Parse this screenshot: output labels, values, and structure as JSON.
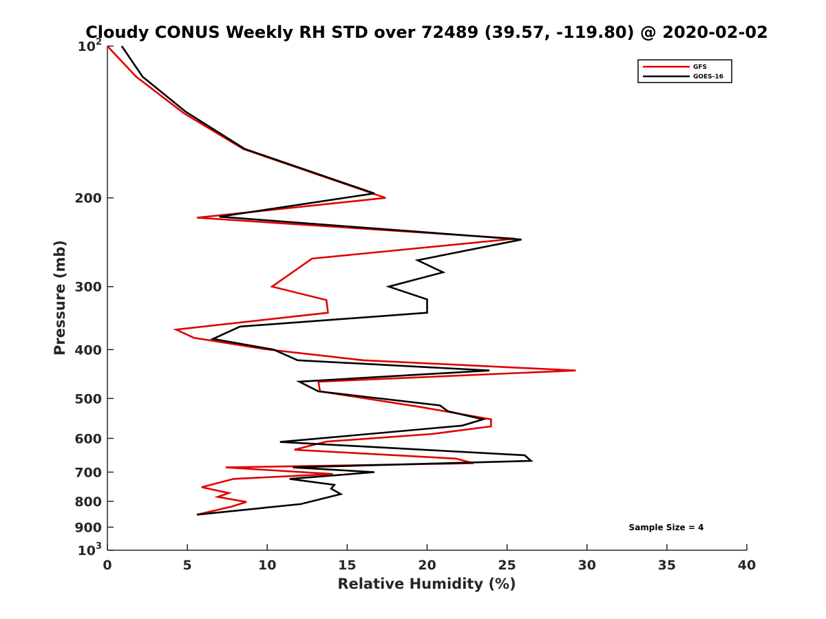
{
  "chart_data": {
    "type": "line",
    "title": "Cloudy CONUS Weekly RH STD over 72489 (39.57, -119.80) @ 2020-02-02",
    "xlabel": "Relative Humidity (%)",
    "ylabel": "Pressure (mb)",
    "xlim": [
      0,
      40
    ],
    "ylim": [
      100,
      1000
    ],
    "y_scale": "log",
    "y_reversed": true,
    "grid": false,
    "legend_position": "top-right",
    "x_ticks": [
      0,
      5,
      10,
      15,
      20,
      25,
      30,
      35,
      40
    ],
    "x_tick_labels": [
      "0",
      "5",
      "10",
      "15",
      "20",
      "25",
      "30",
      "35",
      "40"
    ],
    "y_ticks": [
      {
        "value": 100,
        "base": "10",
        "exp": "2"
      },
      {
        "value": 200,
        "label": "200"
      },
      {
        "value": 300,
        "label": "300"
      },
      {
        "value": 400,
        "label": "400"
      },
      {
        "value": 500,
        "label": "500"
      },
      {
        "value": 600,
        "label": "600"
      },
      {
        "value": 700,
        "label": "700"
      },
      {
        "value": 800,
        "label": "800"
      },
      {
        "value": 900,
        "label": "900"
      },
      {
        "value": 1000,
        "base": "10",
        "exp": "3"
      }
    ],
    "annotation": "Sample Size = 4",
    "series": [
      {
        "name": "GFS",
        "color": "#e00000",
        "points": [
          [
            0.0,
            100
          ],
          [
            1.8,
            115
          ],
          [
            4.8,
            136
          ],
          [
            8.5,
            160
          ],
          [
            17.4,
            200
          ],
          [
            5.6,
            219
          ],
          [
            25.5,
            241
          ],
          [
            12.8,
            264
          ],
          [
            10.3,
            300
          ],
          [
            13.7,
            319
          ],
          [
            13.8,
            338
          ],
          [
            4.3,
            365
          ],
          [
            5.4,
            379
          ],
          [
            9.8,
            399
          ],
          [
            16.0,
            420
          ],
          [
            29.3,
            440
          ],
          [
            13.2,
            463
          ],
          [
            13.3,
            484
          ],
          [
            19.6,
            520
          ],
          [
            24.0,
            550
          ],
          [
            24.0,
            568
          ],
          [
            20.3,
            588
          ],
          [
            13.7,
            609
          ],
          [
            11.7,
            632
          ],
          [
            21.8,
            658
          ],
          [
            22.9,
            672
          ],
          [
            7.4,
            685
          ],
          [
            14.1,
            706
          ],
          [
            7.9,
            722
          ],
          [
            5.9,
            750
          ],
          [
            7.6,
            770
          ],
          [
            6.9,
            784
          ],
          [
            8.7,
            802
          ],
          [
            7.8,
            819
          ],
          [
            5.6,
            850
          ]
        ]
      },
      {
        "name": "GOES-16",
        "color": "#000000",
        "points": [
          [
            0.9,
            100
          ],
          [
            2.2,
            115
          ],
          [
            4.9,
            135
          ],
          [
            8.6,
            160
          ],
          [
            16.7,
            196
          ],
          [
            7.0,
            218
          ],
          [
            25.9,
            242
          ],
          [
            19.4,
            266
          ],
          [
            21.0,
            281
          ],
          [
            17.6,
            300
          ],
          [
            20.0,
            318
          ],
          [
            20.0,
            338
          ],
          [
            8.3,
            360
          ],
          [
            6.6,
            381
          ],
          [
            10.4,
            400
          ],
          [
            11.9,
            420
          ],
          [
            23.9,
            440
          ],
          [
            12.0,
            463
          ],
          [
            13.2,
            484
          ],
          [
            20.8,
            516
          ],
          [
            21.3,
            530
          ],
          [
            23.5,
            550
          ],
          [
            22.2,
            566
          ],
          [
            10.8,
            610
          ],
          [
            26.1,
            648
          ],
          [
            26.5,
            665
          ],
          [
            11.6,
            685
          ],
          [
            16.7,
            700
          ],
          [
            11.4,
            722
          ],
          [
            14.2,
            742
          ],
          [
            14.0,
            755
          ],
          [
            14.6,
            774
          ],
          [
            12.1,
            810
          ],
          [
            5.6,
            850
          ]
        ]
      }
    ]
  }
}
